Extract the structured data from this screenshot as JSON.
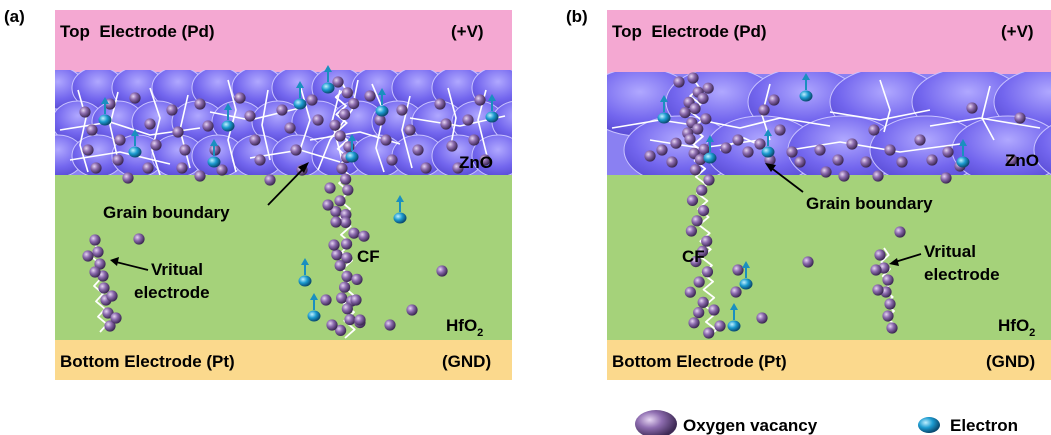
{
  "panel_a": {
    "tag": "(a)",
    "top_electrode": "Top  Electrode (Pd)",
    "top_voltage": "(+V)",
    "bottom_electrode": "Bottom Electrode (Pt)",
    "bottom_voltage": "(GND)",
    "zno_label": "ZnO",
    "hfo2_label": "HfO",
    "hfo2_sub": "2",
    "grain_boundary": "Grain boundary",
    "vritual_line1": "Vritual",
    "vritual_line2": "electrode",
    "cf_label": "CF"
  },
  "panel_b": {
    "tag": "(b)",
    "top_electrode": "Top  Electrode (Pd)",
    "top_voltage": "(+V)",
    "bottom_electrode": "Bottom Electrode (Pt)",
    "bottom_voltage": "(GND)",
    "zno_label": "ZnO",
    "hfo2_label": "HfO",
    "hfo2_sub": "2",
    "grain_boundary": "Grain boundary",
    "vritual_line1": "Vritual",
    "vritual_line2": "electrode",
    "cf_label": "CF"
  },
  "legend": {
    "oxygen_vacancy": "Oxygen vacancy",
    "electron": "Electron"
  },
  "colors": {
    "top_electrode": "#f4a8d2",
    "zno_layer": "#7b72f0",
    "hfo2_layer": "#a5d27a",
    "bottom_electrode": "#fbd98d",
    "vacancy": "#8a6aa8",
    "electron": "#1f9ccc"
  }
}
